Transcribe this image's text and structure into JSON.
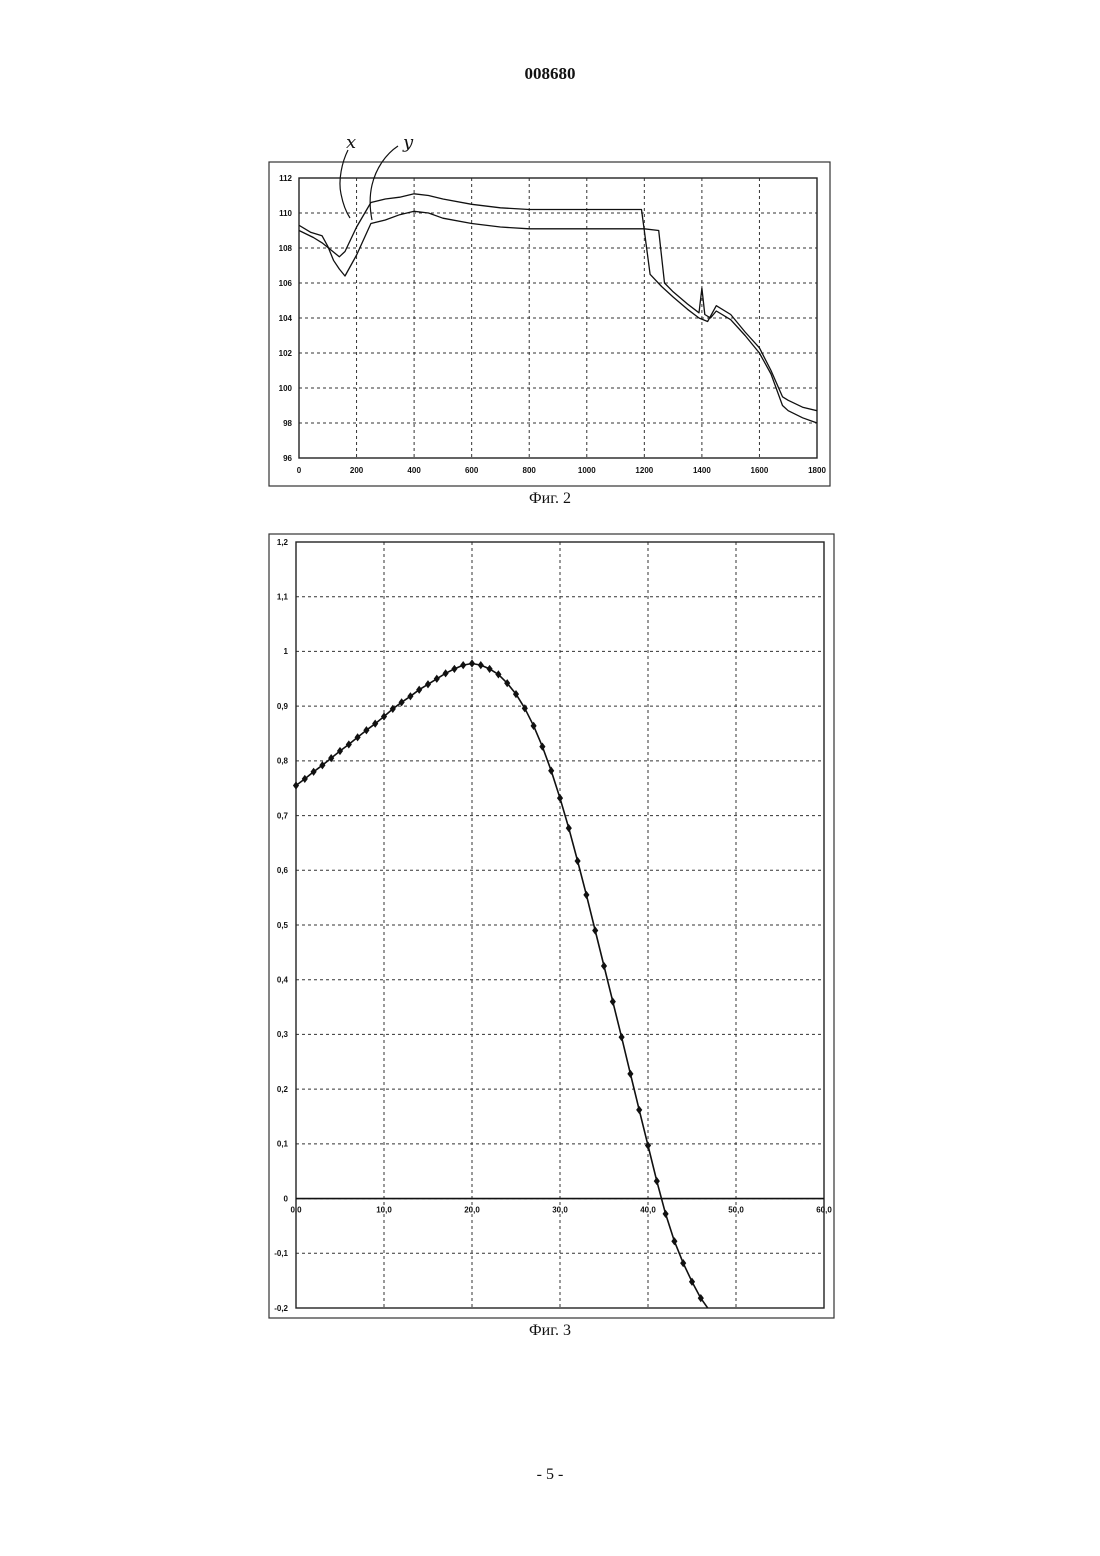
{
  "document": {
    "number": "008680",
    "page_number": "- 5 -"
  },
  "chart_data": [
    {
      "type": "line",
      "caption": "Фиг. 2",
      "xlabel": "",
      "ylabel": "",
      "xlim": [
        0,
        1800
      ],
      "ylim": [
        96,
        112
      ],
      "x_ticks": [
        "0",
        "200",
        "400",
        "600",
        "800",
        "1000",
        "1200",
        "1400",
        "1600",
        "1800"
      ],
      "y_ticks": [
        "96",
        "98",
        "100",
        "102",
        "104",
        "106",
        "108",
        "110",
        "112"
      ],
      "grid": true,
      "annotations": [
        "x",
        "y"
      ],
      "series": [
        {
          "name": "x",
          "x": [
            0,
            50,
            80,
            110,
            140,
            160,
            200,
            250,
            300,
            350,
            400,
            450,
            500,
            600,
            700,
            800,
            900,
            1000,
            1100,
            1190,
            1200,
            1220,
            1260,
            1300,
            1350,
            1390,
            1420,
            1450,
            1500,
            1550,
            1600,
            1640,
            1680,
            1700,
            1750,
            1800
          ],
          "y": [
            109.0,
            108.6,
            108.3,
            107.9,
            107.5,
            107.8,
            109.2,
            110.6,
            110.8,
            110.9,
            111.1,
            111.0,
            110.8,
            110.5,
            110.3,
            110.2,
            110.2,
            110.2,
            110.2,
            110.2,
            109.0,
            106.5,
            105.8,
            105.2,
            104.5,
            104.0,
            103.8,
            104.7,
            104.2,
            103.2,
            102.3,
            101.0,
            99.5,
            99.3,
            98.9,
            98.7
          ]
        },
        {
          "name": "y",
          "x": [
            0,
            40,
            80,
            100,
            120,
            140,
            160,
            200,
            250,
            300,
            350,
            400,
            450,
            500,
            600,
            700,
            800,
            900,
            1000,
            1100,
            1200,
            1250,
            1270,
            1300,
            1350,
            1390,
            1400,
            1410,
            1430,
            1450,
            1500,
            1550,
            1600,
            1640,
            1680,
            1700,
            1750,
            1800
          ],
          "y": [
            109.3,
            108.9,
            108.7,
            108.1,
            107.3,
            106.8,
            106.4,
            107.6,
            109.4,
            109.6,
            109.9,
            110.1,
            110.0,
            109.7,
            109.4,
            109.2,
            109.1,
            109.1,
            109.1,
            109.1,
            109.1,
            109.0,
            106.0,
            105.5,
            104.8,
            104.3,
            105.7,
            104.2,
            104.0,
            104.4,
            103.9,
            103.0,
            102.0,
            100.8,
            99.0,
            98.7,
            98.3,
            98.0
          ]
        }
      ]
    },
    {
      "type": "line",
      "caption": "Фиг. 3",
      "xlabel": "",
      "ylabel": "",
      "xlim": [
        0,
        60
      ],
      "ylim": [
        -0.2,
        1.2
      ],
      "x_ticks": [
        "0,0",
        "10,0",
        "20,0",
        "30,0",
        "40,0",
        "50,0",
        "60,0"
      ],
      "y_ticks": [
        "-0,2",
        "-0,1",
        "0",
        "0,1",
        "0,2",
        "0,3",
        "0,4",
        "0,5",
        "0,6",
        "0,7",
        "0,8",
        "0,9",
        "1",
        "1,1",
        "1,2"
      ],
      "grid": true,
      "markers": "diamond",
      "series": [
        {
          "x": [
            0,
            1,
            2,
            3,
            4,
            5,
            6,
            7,
            8,
            9,
            10,
            11,
            12,
            13,
            14,
            15,
            16,
            17,
            18,
            19,
            20,
            21,
            22,
            23,
            24,
            25,
            26,
            27,
            28,
            29,
            30,
            31,
            32,
            33,
            34,
            35,
            36,
            37,
            38,
            39,
            40,
            41,
            42,
            43,
            44,
            45,
            46,
            47
          ],
          "y": [
            0.755,
            0.767,
            0.78,
            0.792,
            0.805,
            0.818,
            0.83,
            0.843,
            0.856,
            0.868,
            0.881,
            0.895,
            0.907,
            0.918,
            0.93,
            0.94,
            0.95,
            0.96,
            0.968,
            0.975,
            0.978,
            0.975,
            0.968,
            0.958,
            0.942,
            0.922,
            0.896,
            0.864,
            0.826,
            0.782,
            0.732,
            0.677,
            0.617,
            0.555,
            0.49,
            0.425,
            0.36,
            0.295,
            0.228,
            0.162,
            0.097,
            0.032,
            -0.028,
            -0.078,
            -0.118,
            -0.152,
            -0.182,
            -0.205
          ]
        }
      ]
    }
  ]
}
